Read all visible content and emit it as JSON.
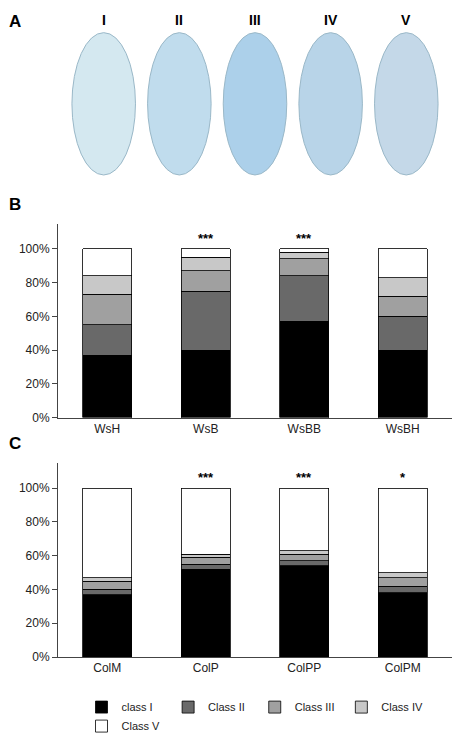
{
  "chart_data": [
    {
      "type": "photo",
      "title": "A",
      "annotations": [
        "I",
        "II",
        "III",
        "IV",
        "V"
      ]
    },
    {
      "type": "bar",
      "stacked": true,
      "title": "B",
      "categories": [
        "WsH",
        "WsB",
        "WsBB",
        "WsBH"
      ],
      "series": [
        {
          "name": "class I",
          "color": "#000000",
          "values": [
            37,
            40,
            57,
            40
          ]
        },
        {
          "name": "Class II",
          "color": "#696969",
          "values": [
            18,
            35,
            27,
            20
          ]
        },
        {
          "name": "Class III",
          "color": "#a0a0a0",
          "values": [
            18,
            12,
            10,
            12
          ]
        },
        {
          "name": "Class IV",
          "color": "#c8c8c8",
          "values": [
            11,
            8,
            4,
            11
          ]
        },
        {
          "name": "Class V",
          "color": "#ffffff",
          "values": [
            16,
            5,
            2,
            17
          ]
        }
      ],
      "ylim": [
        0,
        115
      ],
      "yticks": [
        {
          "value": 0,
          "label": "0%"
        },
        {
          "value": 20,
          "label": "20%"
        },
        {
          "value": 40,
          "label": "40%"
        },
        {
          "value": 60,
          "label": "60%"
        },
        {
          "value": 80,
          "label": "80%"
        },
        {
          "value": 100,
          "label": "100%"
        }
      ],
      "annotations": [
        {
          "x": "WsB",
          "text": "***"
        },
        {
          "x": "WsBB",
          "text": "***"
        }
      ],
      "grid": false
    },
    {
      "type": "bar",
      "stacked": true,
      "title": "C",
      "categories": [
        "ColM",
        "ColP",
        "ColPP",
        "ColPM"
      ],
      "series": [
        {
          "name": "class I",
          "color": "#000000",
          "values": [
            37,
            52,
            54,
            38
          ]
        },
        {
          "name": "Class II",
          "color": "#696969",
          "values": [
            3,
            3,
            3,
            4
          ]
        },
        {
          "name": "Class III",
          "color": "#a0a0a0",
          "values": [
            5,
            4,
            4,
            5
          ]
        },
        {
          "name": "Class IV",
          "color": "#c8c8c8",
          "values": [
            2,
            2,
            2,
            3
          ]
        },
        {
          "name": "Class V",
          "color": "#ffffff",
          "values": [
            53,
            39,
            37,
            50
          ]
        }
      ],
      "ylim": [
        0,
        115
      ],
      "yticks": [
        {
          "value": 0,
          "label": "0%"
        },
        {
          "value": 20,
          "label": "20%"
        },
        {
          "value": 40,
          "label": "40%"
        },
        {
          "value": 60,
          "label": "60%"
        },
        {
          "value": 80,
          "label": "80%"
        },
        {
          "value": 100,
          "label": "100%"
        }
      ],
      "annotations": [
        {
          "x": "ColP",
          "text": "***"
        },
        {
          "x": "ColPP",
          "text": "***"
        },
        {
          "x": "ColPM",
          "text": "*"
        }
      ],
      "grid": false,
      "legend": "bottom"
    }
  ]
}
